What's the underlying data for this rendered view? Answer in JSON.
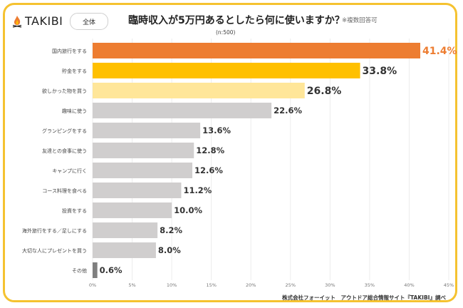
{
  "header": {
    "brand": "TAKIBI",
    "logo_icon": "campfire-icon",
    "scope_label": "全体",
    "title": "臨時収入が5万円あるとしたら何に使いますか？",
    "note": "※複数回答可",
    "sample_size": "(n:500)"
  },
  "footer": {
    "credit": "株式会社フォーイット　アウトドア総合情報サイト『TAKIBI』調べ"
  },
  "colors": {
    "highlight1": "#ed7d31",
    "highlight2": "#ffc000",
    "highlight3": "#ffe699",
    "default": "#d0cece",
    "other": "#7f7f7f",
    "frame": "#f5c230"
  },
  "chart_data": {
    "type": "bar",
    "orientation": "horizontal",
    "title": "臨時収入が5万円あるとしたら何に使いますか？",
    "xlabel": "",
    "ylabel": "",
    "xlim": [
      0,
      45
    ],
    "grid": true,
    "x_ticks": [
      "0%",
      "5%",
      "10%",
      "15%",
      "20%",
      "25%",
      "30%",
      "35%",
      "40%",
      "45%"
    ],
    "categories": [
      "国内旅行をする",
      "貯金をする",
      "欲しかった物を買う",
      "趣味に使う",
      "グランピングをする",
      "友達との食事に使う",
      "キャンプに行く",
      "コース料理を食べる",
      "投資をする",
      "海外旅行をする／足しにする",
      "大切な人にプレゼントを買う",
      "その他"
    ],
    "values": [
      41.4,
      33.8,
      26.8,
      22.6,
      13.6,
      12.8,
      12.6,
      11.2,
      10.0,
      8.2,
      8.0,
      0.6
    ],
    "labels": [
      "41.4%",
      "33.8%",
      "26.8%",
      "22.6%",
      "13.6%",
      "12.8%",
      "12.6%",
      "11.2%",
      "10.0%",
      "8.2%",
      "8.0%",
      "0.6%"
    ],
    "bar_colors": [
      "#ed7d31",
      "#ffc000",
      "#ffe699",
      "#d0cece",
      "#d0cece",
      "#d0cece",
      "#d0cece",
      "#d0cece",
      "#d0cece",
      "#d0cece",
      "#d0cece",
      "#7f7f7f"
    ],
    "label_colors": [
      "#ed7d31",
      "#333333",
      "#333333",
      "#333333",
      "#333333",
      "#333333",
      "#333333",
      "#333333",
      "#333333",
      "#333333",
      "#333333",
      "#333333"
    ]
  }
}
